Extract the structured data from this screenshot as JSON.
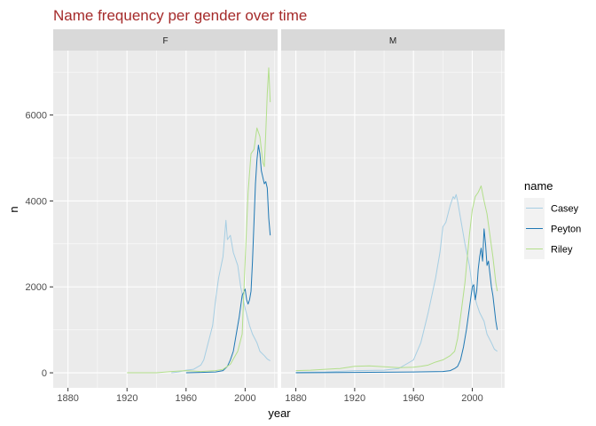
{
  "chart_data": {
    "type": "line",
    "title": "Name frequency per gender over time",
    "xlabel": "year",
    "ylabel": "n",
    "xlim": [
      1870,
      2022
    ],
    "ylim": [
      -350,
      7500
    ],
    "x_ticks": [
      1880,
      1920,
      1960,
      2000
    ],
    "x_tick_labels": [
      "1880",
      "1920",
      "1960",
      "2000"
    ],
    "y_ticks": [
      0,
      2000,
      4000,
      6000
    ],
    "y_tick_labels": [
      "0",
      "2000",
      "4000",
      "6000"
    ],
    "grid": true,
    "legend": {
      "title": "name",
      "position": "right",
      "entries": [
        {
          "name": "Casey",
          "color": "#a6cee3"
        },
        {
          "name": "Peyton",
          "color": "#1f78b4"
        },
        {
          "name": "Riley",
          "color": "#b2df8a"
        }
      ]
    },
    "facets": [
      {
        "label": "F",
        "series": [
          {
            "name": "Casey",
            "x": [
              1950,
              1955,
              1960,
              1965,
              1970,
              1972,
              1975,
              1978,
              1980,
              1982,
              1985,
              1987,
              1988,
              1990,
              1992,
              1995,
              1997,
              2000,
              2003,
              2005,
              2008,
              2010,
              2013,
              2015,
              2017
            ],
            "y": [
              0,
              20,
              60,
              80,
              180,
              300,
              700,
              1100,
              1700,
              2200,
              2700,
              3550,
              3100,
              3200,
              2800,
              2500,
              2000,
              1500,
              1100,
              900,
              700,
              500,
              400,
              320,
              280
            ]
          },
          {
            "name": "Peyton",
            "x": [
              1960,
              1970,
              1980,
              1985,
              1988,
              1990,
              1992,
              1994,
              1996,
              1998,
              2000,
              2001,
              2002,
              2003,
              2004,
              2005,
              2006,
              2007,
              2008,
              2009,
              2010,
              2011,
              2012,
              2013,
              2014,
              2015,
              2016,
              2017
            ],
            "y": [
              0,
              10,
              20,
              50,
              150,
              300,
              500,
              900,
              1300,
              1800,
              1950,
              1700,
              1600,
              1700,
              1900,
              2600,
              3500,
              4400,
              4950,
              5300,
              5100,
              4700,
              4550,
              4400,
              4450,
              4300,
              3600,
              3200
            ]
          },
          {
            "name": "Riley",
            "x": [
              1920,
              1940,
              1950,
              1960,
              1970,
              1980,
              1985,
              1990,
              1995,
              1998,
              2000,
              2002,
              2004,
              2006,
              2008,
              2010,
              2012,
              2013,
              2014,
              2015,
              2016,
              2017
            ],
            "y": [
              0,
              0,
              30,
              50,
              30,
              50,
              80,
              200,
              500,
              900,
              2600,
              4200,
              5100,
              5200,
              5700,
              5500,
              4900,
              4800,
              5600,
              6500,
              7100,
              6300
            ]
          }
        ]
      },
      {
        "label": "M",
        "series": [
          {
            "name": "Casey",
            "x": [
              1880,
              1900,
              1920,
              1940,
              1950,
              1955,
              1960,
              1965,
              1970,
              1975,
              1978,
              1980,
              1982,
              1985,
              1987,
              1988,
              1989,
              1990,
              1992,
              1995,
              1998,
              2000,
              2003,
              2005,
              2008,
              2010,
              2013,
              2015,
              2017
            ],
            "y": [
              10,
              20,
              50,
              60,
              100,
              200,
              300,
              700,
              1400,
              2200,
              2800,
              3400,
              3500,
              3900,
              4100,
              4050,
              4150,
              4000,
              3600,
              3000,
              2500,
              2000,
              1600,
              1400,
              1200,
              900,
              700,
              550,
              500
            ]
          },
          {
            "name": "Peyton",
            "x": [
              1880,
              1920,
              1960,
              1980,
              1985,
              1988,
              1990,
              1992,
              1994,
              1996,
              1998,
              2000,
              2001,
              2002,
              2003,
              2004,
              2005,
              2006,
              2007,
              2008,
              2009,
              2010,
              2011,
              2012,
              2013,
              2014,
              2015,
              2016,
              2017
            ],
            "y": [
              0,
              10,
              20,
              30,
              50,
              100,
              150,
              300,
              600,
              1000,
              1500,
              2000,
              2050,
              1700,
              1900,
              2400,
              2700,
              2900,
              2600,
              3350,
              3000,
              2500,
              2600,
              2300,
              2000,
              1800,
              1500,
              1200,
              1000
            ]
          },
          {
            "name": "Riley",
            "x": [
              1880,
              1890,
              1900,
              1910,
              1920,
              1930,
              1940,
              1950,
              1960,
              1965,
              1970,
              1975,
              1980,
              1985,
              1988,
              1990,
              1992,
              1995,
              1998,
              2000,
              2002,
              2004,
              2006,
              2008,
              2010,
              2012,
              2014,
              2016,
              2017
            ],
            "y": [
              50,
              60,
              80,
              100,
              150,
              160,
              140,
              120,
              130,
              150,
              180,
              250,
              300,
              400,
              500,
              800,
              1300,
              2100,
              3200,
              3800,
              4100,
              4200,
              4350,
              4000,
              3700,
              3200,
              2700,
              2100,
              1900
            ]
          }
        ]
      }
    ]
  }
}
